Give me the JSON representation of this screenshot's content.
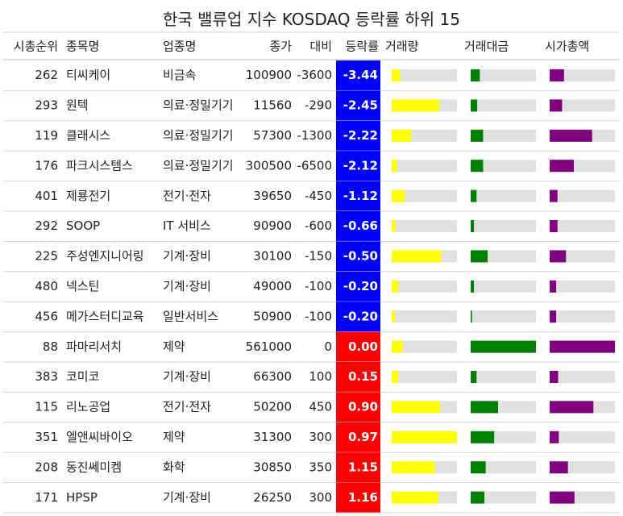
{
  "chart_data": {
    "type": "table",
    "title": "한국 밸류업 지수 KOSDAQ 등락률 하위 15",
    "columns": [
      "시총순위",
      "종목명",
      "업종명",
      "종가",
      "대비",
      "등락률",
      "거래량",
      "거래대금",
      "시가총액"
    ],
    "rows": [
      {
        "rank": "262",
        "name": "티씨케이",
        "sector": "비금속",
        "close": "100900",
        "change": "-3600",
        "pct": "-3.44",
        "volume": 0.13,
        "value": 0.14,
        "cap": 0.22
      },
      {
        "rank": "293",
        "name": "원텍",
        "sector": "의료·정밀기기",
        "close": "11560",
        "change": "-290",
        "pct": "-2.45",
        "volume": 0.73,
        "value": 0.1,
        "cap": 0.19
      },
      {
        "rank": "119",
        "name": "클래시스",
        "sector": "의료·정밀기기",
        "close": "57300",
        "change": "-1300",
        "pct": "-2.22",
        "volume": 0.3,
        "value": 0.19,
        "cap": 0.65
      },
      {
        "rank": "176",
        "name": "파크시스템스",
        "sector": "의료·정밀기기",
        "close": "300500",
        "change": "-6500",
        "pct": "-2.12",
        "volume": 0.08,
        "value": 0.19,
        "cap": 0.37
      },
      {
        "rank": "401",
        "name": "제룡전기",
        "sector": "전기·전자",
        "close": "39650",
        "change": "-450",
        "pct": "-1.12",
        "volume": 0.2,
        "value": 0.09,
        "cap": 0.12
      },
      {
        "rank": "292",
        "name": "SOOP",
        "sector": "IT 서비스",
        "close": "90900",
        "change": "-600",
        "pct": "-0.66",
        "volume": 0.06,
        "value": 0.05,
        "cap": 0.12
      },
      {
        "rank": "225",
        "name": "주성엔지니어링",
        "sector": "기계·장비",
        "close": "30100",
        "change": "-150",
        "pct": "-0.50",
        "volume": 0.76,
        "value": 0.26,
        "cap": 0.25
      },
      {
        "rank": "480",
        "name": "넥스틴",
        "sector": "기계·장비",
        "close": "49000",
        "change": "-100",
        "pct": "-0.20",
        "volume": 0.1,
        "value": 0.05,
        "cap": 0.1
      },
      {
        "rank": "456",
        "name": "메가스터디교육",
        "sector": "일반서비스",
        "close": "50900",
        "change": "-100",
        "pct": "-0.20",
        "volume": 0.05,
        "value": 0.02,
        "cap": 0.1
      },
      {
        "rank": "88",
        "name": "파마리서치",
        "sector": "제약",
        "close": "561000",
        "change": "0",
        "pct": "0.00",
        "volume": 0.17,
        "value": 1.0,
        "cap": 1.0
      },
      {
        "rank": "383",
        "name": "코미코",
        "sector": "기계·장비",
        "close": "66300",
        "change": "100",
        "pct": "0.15",
        "volume": 0.1,
        "value": 0.09,
        "cap": 0.13
      },
      {
        "rank": "115",
        "name": "리노공업",
        "sector": "전기·전자",
        "close": "50200",
        "change": "450",
        "pct": "0.90",
        "volume": 0.74,
        "value": 0.42,
        "cap": 0.67
      },
      {
        "rank": "351",
        "name": "엘앤씨바이오",
        "sector": "제약",
        "close": "31300",
        "change": "300",
        "pct": "0.97",
        "volume": 1.0,
        "value": 0.36,
        "cap": 0.14
      },
      {
        "rank": "208",
        "name": "동진쎄미켐",
        "sector": "화학",
        "close": "30850",
        "change": "350",
        "pct": "1.15",
        "volume": 0.66,
        "value": 0.23,
        "cap": 0.28
      },
      {
        "rank": "171",
        "name": "HPSP",
        "sector": "기계·장비",
        "close": "26250",
        "change": "300",
        "pct": "1.16",
        "volume": 0.71,
        "value": 0.21,
        "cap": 0.38
      }
    ],
    "colors": {
      "negative": "#0000ff",
      "positive": "#ff0000",
      "volume": "#ffff00",
      "value": "#008000",
      "cap": "#800080",
      "track": "#e0e0e0"
    }
  }
}
